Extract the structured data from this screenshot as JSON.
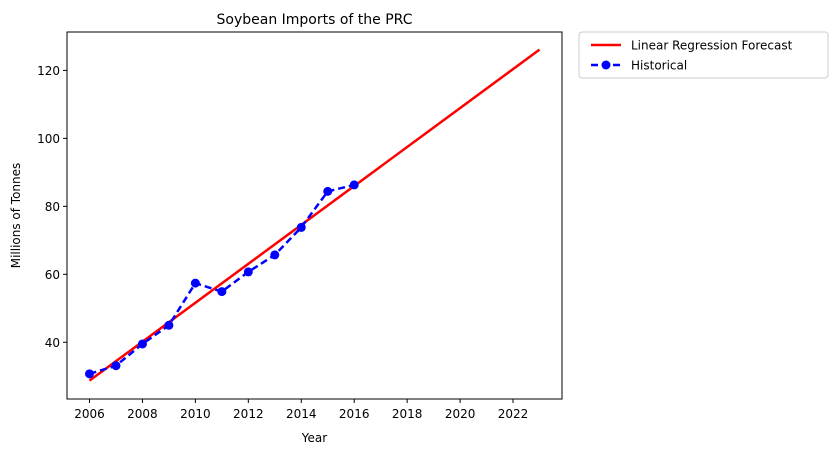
{
  "chart_data": {
    "type": "line",
    "title": "Soybean Imports of the PRC",
    "xlabel": "Year",
    "ylabel": "Millions of Tonnes",
    "xlim": [
      2005.15,
      2023.85
    ],
    "ylim": [
      23.3,
      131.3
    ],
    "x_ticks": [
      2006,
      2008,
      2010,
      2012,
      2014,
      2016,
      2018,
      2020,
      2022
    ],
    "y_ticks": [
      40,
      60,
      80,
      100,
      120
    ],
    "grid": false,
    "legend_position": "outside-top-right",
    "series": [
      {
        "name": "Linear Regression Forecast",
        "style": "solid",
        "color": "#ff0000",
        "x": [
          2006,
          2023
        ],
        "y": [
          28.7,
          126.1
        ]
      },
      {
        "name": "Historical",
        "style": "dashed-markers",
        "color": "#0000ff",
        "x": [
          2006,
          2007,
          2008,
          2009,
          2010,
          2011,
          2012,
          2013,
          2014,
          2015,
          2016
        ],
        "y": [
          30.7,
          33.1,
          39.5,
          45.0,
          57.4,
          54.9,
          60.7,
          65.7,
          73.8,
          84.4,
          86.3
        ]
      }
    ]
  }
}
